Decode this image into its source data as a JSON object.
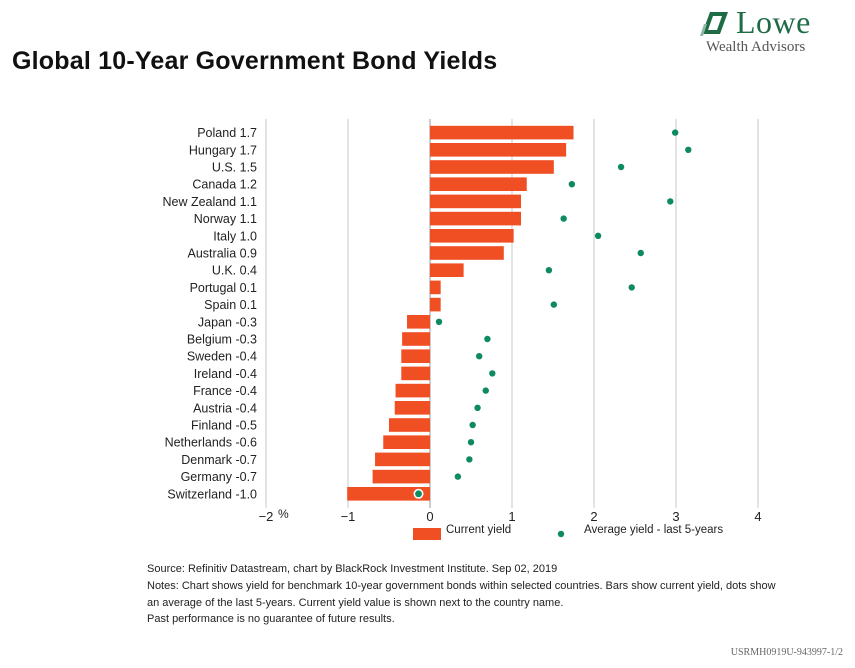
{
  "brand": {
    "name": "Lowe",
    "subtitle": "Wealth Advisors",
    "colors": {
      "brand_green": "#1f6b45",
      "bar": "#f04e23",
      "dot": "#0d8a5f"
    }
  },
  "title": "Global 10-Year Government Bond Yields",
  "chart_data": {
    "type": "bar",
    "orientation": "horizontal",
    "categories": [
      "Poland",
      "Hungary",
      "U.S.",
      "Canada",
      "New Zealand",
      "Norway",
      "Italy",
      "Australia",
      "U.K.",
      "Portugal",
      "Spain",
      "Japan",
      "Belgium",
      "Sweden",
      "Ireland",
      "France",
      "Austria",
      "Finland",
      "Netherlands",
      "Denmark",
      "Germany",
      "Switzerland"
    ],
    "category_labels": [
      "Poland 1.7",
      "Hungary 1.7",
      "U.S. 1.5",
      "Canada 1.2",
      "New Zealand 1.1",
      "Norway 1.1",
      "Italy 1.0",
      "Australia 0.9",
      "U.K. 0.4",
      "Portugal 0.1",
      "Spain 0.1",
      "Japan -0.3",
      "Belgium -0.3",
      "Sweden -0.4",
      "Ireland -0.4",
      "France -0.4",
      "Austria -0.4",
      "Finland -0.5",
      "Netherlands -0.6",
      "Denmark -0.7",
      "Germany -0.7",
      "Switzerland -1.0"
    ],
    "series": [
      {
        "name": "Current yield",
        "kind": "bar",
        "color": "#f04e23",
        "values": [
          1.75,
          1.66,
          1.51,
          1.18,
          1.11,
          1.11,
          1.02,
          0.9,
          0.41,
          0.13,
          0.13,
          -0.28,
          -0.34,
          -0.35,
          -0.35,
          -0.42,
          -0.43,
          -0.5,
          -0.57,
          -0.67,
          -0.7,
          -1.01
        ]
      },
      {
        "name": "Average yield - last 5-years",
        "kind": "dot",
        "color": "#0d8a5f",
        "values": [
          2.99,
          3.15,
          2.33,
          1.73,
          2.93,
          1.63,
          2.05,
          2.57,
          1.45,
          2.46,
          1.51,
          0.11,
          0.7,
          0.6,
          0.76,
          0.68,
          0.58,
          0.52,
          0.5,
          0.48,
          0.34,
          -0.14
        ]
      }
    ],
    "xlim": [
      -2,
      4
    ],
    "xticks": [
      "−2",
      "−1",
      "0",
      "1",
      "2",
      "3",
      "4"
    ],
    "xtick_values": [
      -2,
      -1,
      0,
      1,
      2,
      3,
      4
    ],
    "xunit": "%",
    "grid": "vertical",
    "legend_position": "bottom"
  },
  "notes": {
    "source": "Source: Refinitiv Datastream, chart by BlackRock Investment Institute. Sep 02, 2019",
    "note": "Notes: Chart shows yield for benchmark 10-year government bonds within selected countries. Bars show current yield, dots show an average of the last 5-years. Current yield value is shown next to the country name.",
    "disclaimer": "Past performance is no guarantee of future results."
  },
  "document_code": "USRMH0919U-943997-1/2"
}
